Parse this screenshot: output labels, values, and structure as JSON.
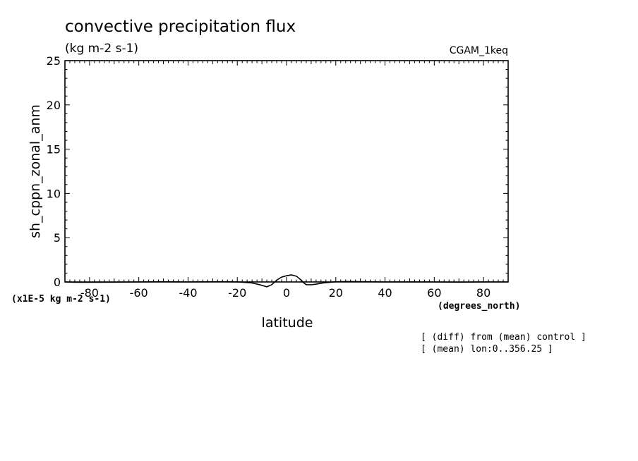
{
  "chart_data": {
    "type": "line",
    "title": "convective precipitation flux",
    "units": "(kg m-2 s-1)",
    "dataset_label": "CGAM_1keq",
    "xlabel": "latitude",
    "x_units": "(degrees_north)",
    "ylabel": "sh_cppn_zonal_anm",
    "y_scale_note": "(x1E-5 kg m-2 s-1)",
    "xlim": [
      -90,
      90
    ],
    "ylim": [
      0,
      25
    ],
    "x_ticks": [
      -80,
      -60,
      -40,
      -20,
      0,
      20,
      40,
      60,
      80
    ],
    "y_ticks": [
      0,
      5,
      10,
      15,
      20,
      25
    ],
    "x_tick_labels": [
      "-80",
      "-60",
      "-40",
      "-20",
      "0",
      "20",
      "40",
      "60",
      "80"
    ],
    "y_tick_labels": [
      "0",
      "5",
      "10",
      "15",
      "20",
      "25"
    ],
    "grid": false,
    "notes": [
      "[ (diff) from (mean) control ]",
      "[ (mean) lon:0..356.25 ]"
    ],
    "series": [
      {
        "x": [
          -90,
          -86,
          -80,
          -70,
          -60,
          -50,
          -40,
          -30,
          -25,
          -20,
          -17,
          -14,
          -11,
          -8,
          -6,
          -4,
          -2,
          0,
          2,
          4,
          6,
          7,
          8,
          10,
          12,
          15,
          20,
          25,
          30,
          40,
          50,
          60,
          70,
          80,
          90
        ],
        "values": [
          0,
          -0.03,
          -0.03,
          -0.02,
          0,
          0.02,
          0,
          0.02,
          0.02,
          0.01,
          -0.05,
          -0.12,
          -0.3,
          -0.55,
          -0.3,
          0.2,
          0.55,
          0.7,
          0.8,
          0.65,
          0.2,
          -0.1,
          -0.3,
          -0.32,
          -0.25,
          -0.1,
          0.02,
          0.05,
          0.03,
          0,
          0.01,
          0,
          -0.02,
          0,
          0
        ]
      }
    ]
  }
}
